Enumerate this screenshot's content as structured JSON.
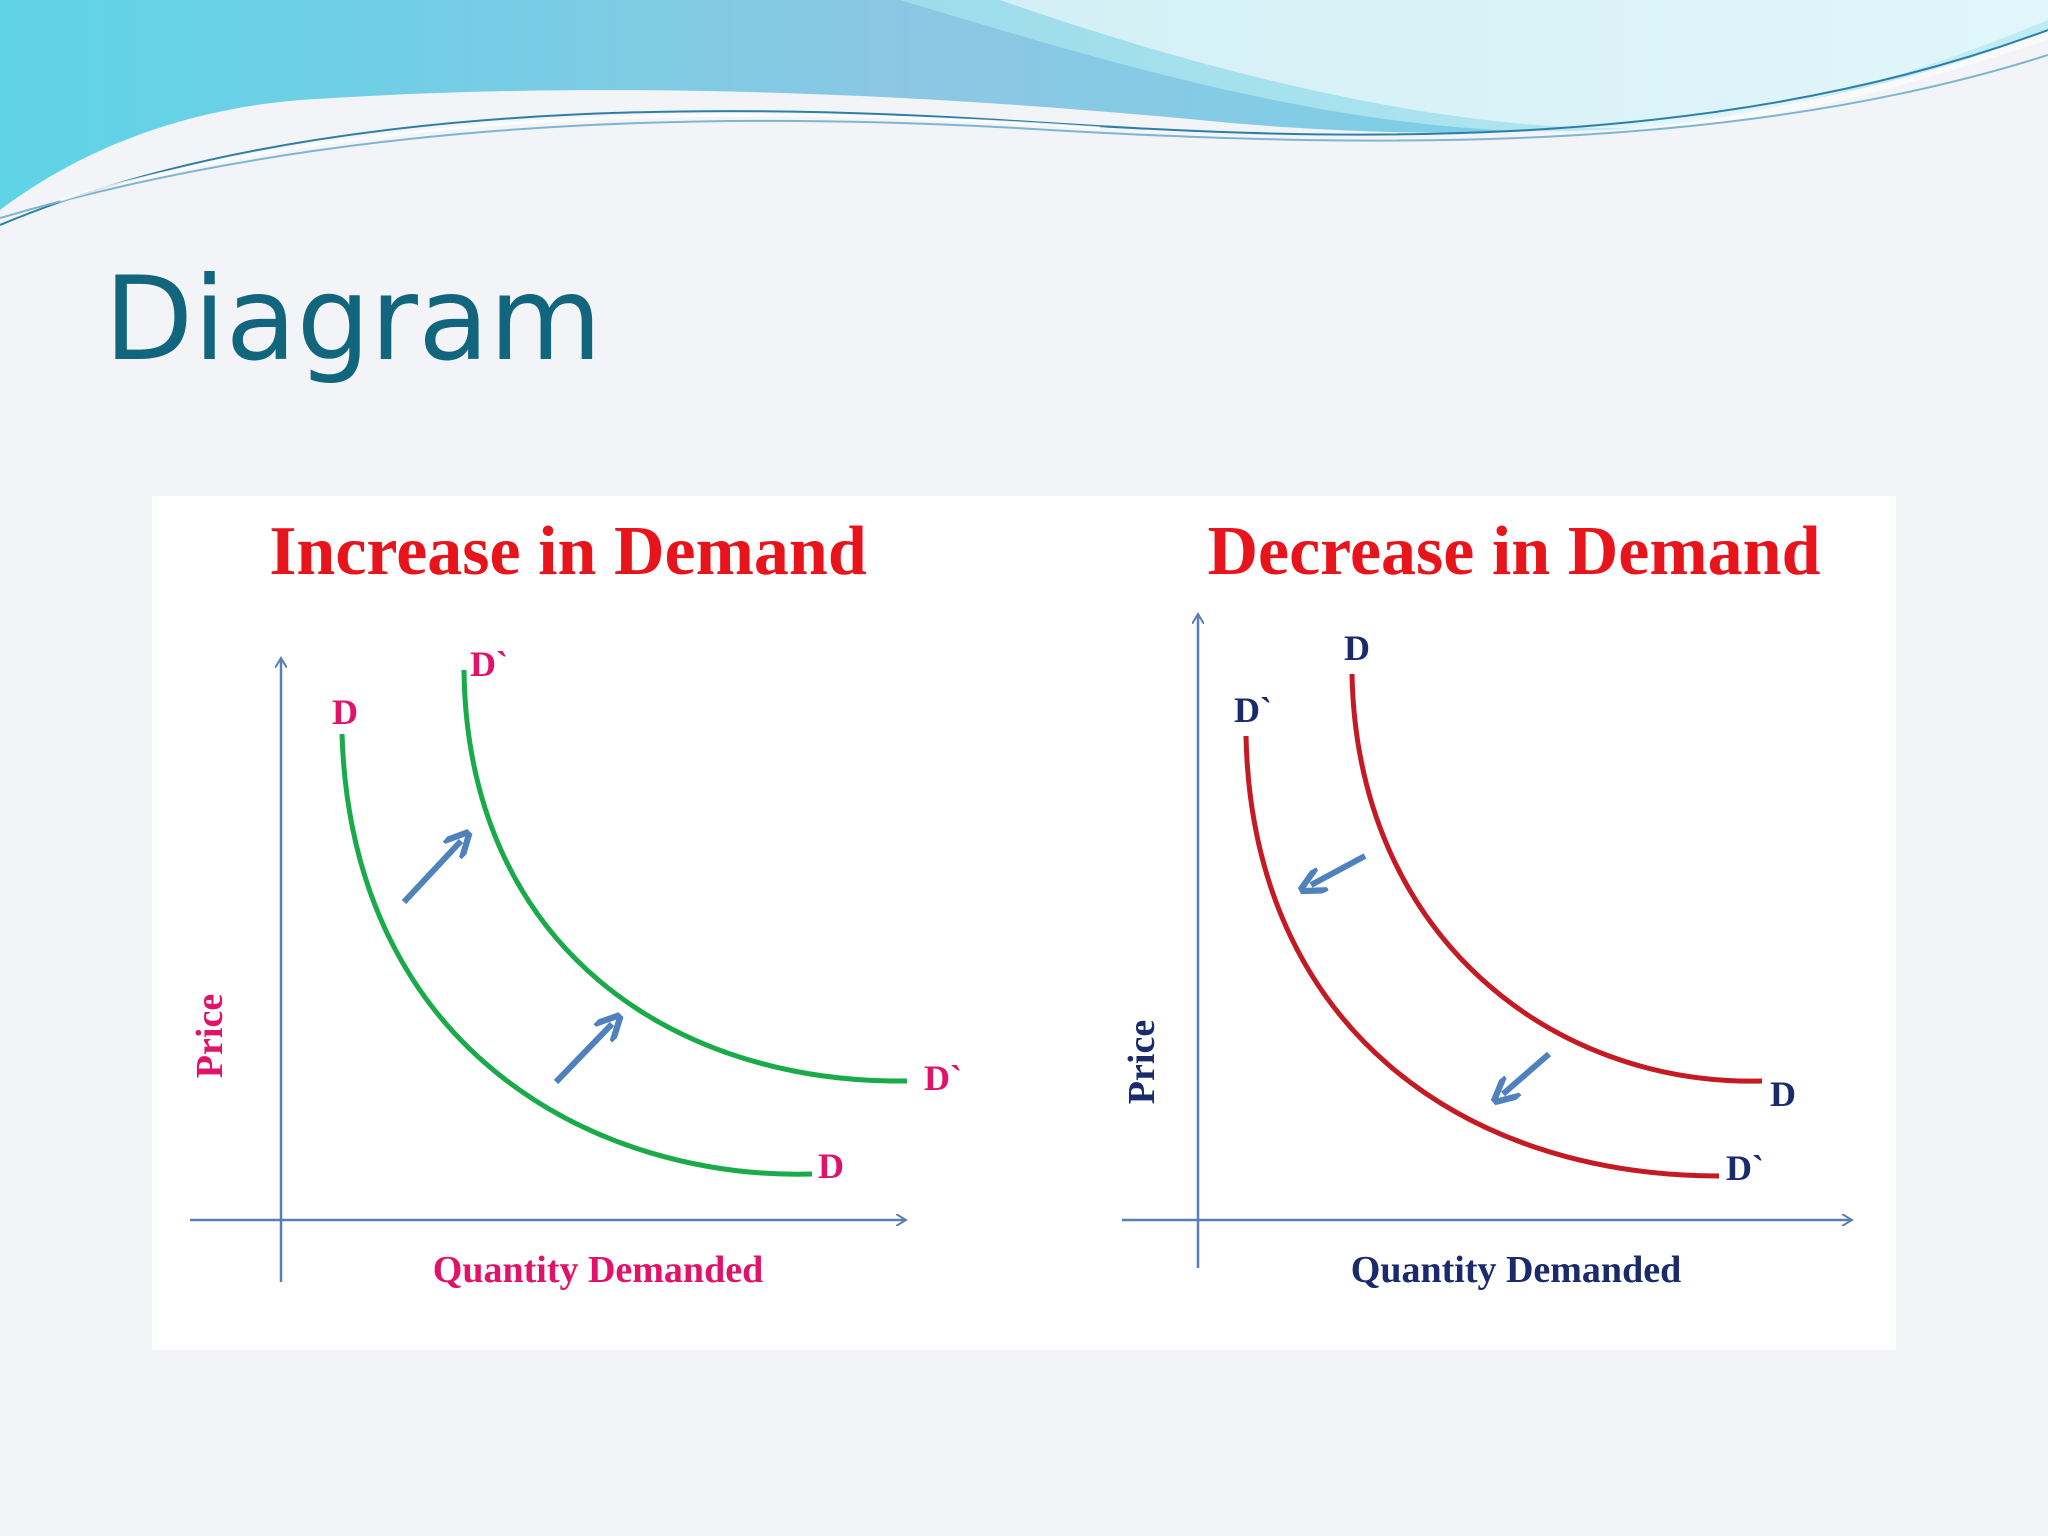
{
  "slide": {
    "title": "Diagram"
  },
  "diagrams": {
    "increase": {
      "title": "Increase in Demand",
      "curve_original_label": "D",
      "curve_shifted_label": "D`",
      "y_axis_label": "Price",
      "x_axis_label": "Quantity Demanded",
      "shift_direction": "right"
    },
    "decrease": {
      "title": "Decrease in Demand",
      "curve_original_label": "D",
      "curve_shifted_label": "D`",
      "y_axis_label": "Price",
      "x_axis_label": "Quantity Demanded",
      "shift_direction": "left"
    }
  },
  "colors": {
    "title": "#11667d",
    "diagram_title": "#e8141c",
    "increase_curve": "#1aaa4a",
    "increase_labels": "#e0126a",
    "decrease_curve": "#c41a24",
    "decrease_labels": "#1b2a6b",
    "arrow": "#4f81bd",
    "axis": "#5b7fb0"
  }
}
